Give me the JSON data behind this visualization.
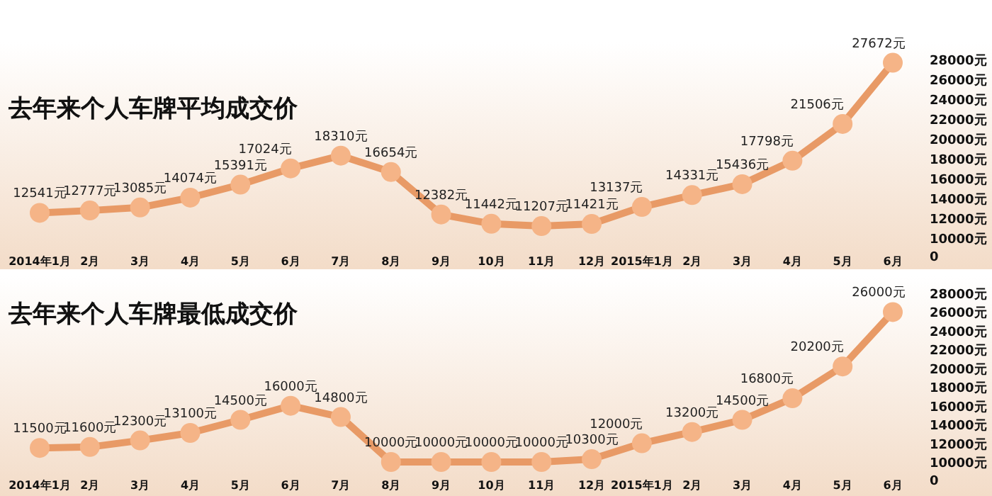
{
  "chart_data": [
    {
      "type": "line",
      "title": "去年来个人车牌平均成交价",
      "categories": [
        "2014年1月",
        "2月",
        "3月",
        "4月",
        "5月",
        "6月",
        "7月",
        "8月",
        "9月",
        "10月",
        "11月",
        "12月",
        "2015年1月",
        "2月",
        "3月",
        "4月",
        "5月",
        "6月"
      ],
      "series": [
        {
          "color": "#e89a66",
          "values": [
            12541,
            12777,
            13085,
            14074,
            15391,
            17024,
            18310,
            16654,
            12382,
            11442,
            11207,
            11421,
            13137,
            14331,
            15436,
            17798,
            21506,
            27672
          ],
          "value_labels": [
            "12541元",
            "12777元",
            "13085元",
            "14074元",
            "15391元",
            "17024元",
            "18310元",
            "16654元",
            "12382元",
            "11442元",
            "11207元",
            "11421元",
            "13137元",
            "14331元",
            "15436元",
            "17798元",
            "21506元",
            "27672元"
          ]
        }
      ],
      "ylim": [
        10000,
        28000
      ],
      "yticks": [
        {
          "value": 10000,
          "label": "10000元"
        },
        {
          "value": 12000,
          "label": "12000元"
        },
        {
          "value": 14000,
          "label": "14000元"
        },
        {
          "value": 16000,
          "label": "16000元"
        },
        {
          "value": 18000,
          "label": "18000元"
        },
        {
          "value": 20000,
          "label": "20000元"
        },
        {
          "value": 22000,
          "label": "22000元"
        },
        {
          "value": 24000,
          "label": "24000元"
        },
        {
          "value": 26000,
          "label": "26000元"
        },
        {
          "value": 28000,
          "label": "28000元"
        }
      ],
      "annotations": [
        "0"
      ],
      "marker": "circle",
      "grid": false
    },
    {
      "type": "line",
      "title": "去年来个人车牌最低成交价",
      "categories": [
        "2014年1月",
        "2月",
        "3月",
        "4月",
        "5月",
        "6月",
        "7月",
        "8月",
        "9月",
        "10月",
        "11月",
        "12月",
        "2015年1月",
        "2月",
        "3月",
        "4月",
        "5月",
        "6月"
      ],
      "series": [
        {
          "color": "#e89a66",
          "values": [
            11500,
            11600,
            12300,
            13100,
            14500,
            16000,
            14800,
            10000,
            10000,
            10000,
            10000,
            10300,
            12000,
            13200,
            14500,
            16800,
            20200,
            26000
          ],
          "value_labels": [
            "11500元",
            "11600元",
            "12300元",
            "13100元",
            "14500元",
            "16000元",
            "14800元",
            "10000元",
            "10000元",
            "10000元",
            "10000元",
            "10300元",
            "12000元",
            "13200元",
            "14500元",
            "16800元",
            "20200元",
            "26000元"
          ]
        }
      ],
      "ylim": [
        10000,
        28000
      ],
      "yticks": [
        {
          "value": 10000,
          "label": "10000元"
        },
        {
          "value": 12000,
          "label": "12000元"
        },
        {
          "value": 14000,
          "label": "14000元"
        },
        {
          "value": 16000,
          "label": "16000元"
        },
        {
          "value": 18000,
          "label": "18000元"
        },
        {
          "value": 20000,
          "label": "20000元"
        },
        {
          "value": 22000,
          "label": "22000元"
        },
        {
          "value": 24000,
          "label": "24000元"
        },
        {
          "value": 26000,
          "label": "26000元"
        },
        {
          "value": 28000,
          "label": "28000元"
        }
      ],
      "annotations": [
        "0"
      ],
      "marker": "circle",
      "grid": false
    }
  ]
}
